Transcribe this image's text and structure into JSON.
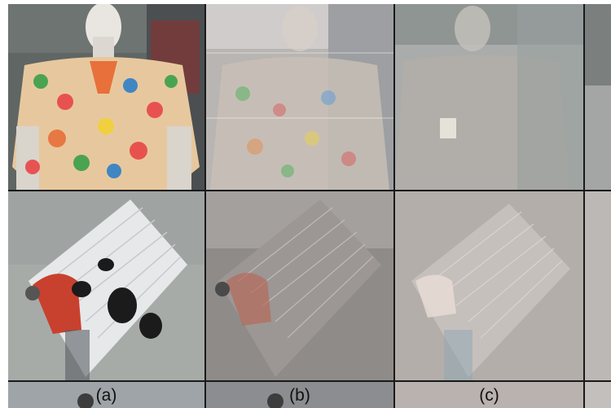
{
  "figure": {
    "panels": [
      {
        "label": "(a)"
      },
      {
        "label": "(b)"
      },
      {
        "label": "(c)"
      }
    ]
  },
  "colors": {
    "grid_line": "#1a1a1a",
    "shirt_orange": "#e8703a",
    "suitcase_white": "#e6e8ea",
    "suitcase_red": "#c8412e",
    "reflection_gray": "#a9acaa"
  }
}
